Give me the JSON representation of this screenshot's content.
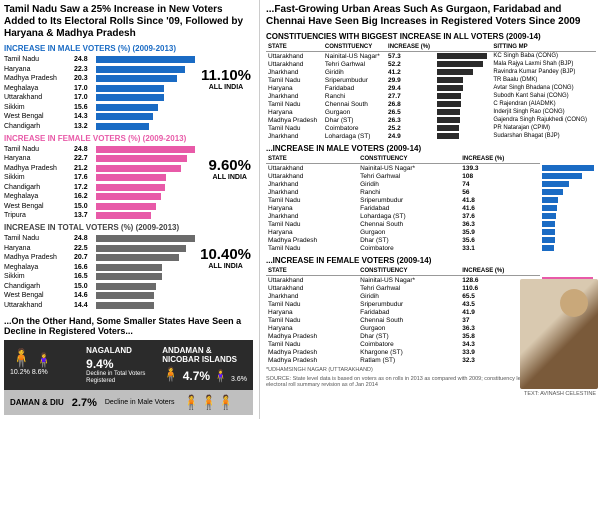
{
  "left": {
    "headline": "Tamil Nadu Saw a 25% Increase in New Voters Added to Its Electoral Rolls Since '09, Followed by Haryana & Madhya Pradesh",
    "male": {
      "title": "INCREASE IN MALE VOTERS (%) (2009-2013)",
      "overall_pct": "11.10%",
      "overall_label": "ALL INDIA",
      "bar_color": "#1a6bc4",
      "max": 25,
      "rows": [
        {
          "label": "Tamil Nadu",
          "val": 24.8
        },
        {
          "label": "Haryana",
          "val": 22.3
        },
        {
          "label": "Madhya Pradesh",
          "val": 20.3
        },
        {
          "label": "Meghalaya",
          "val": 17.0
        },
        {
          "label": "Uttarakhand",
          "val": 17.0
        },
        {
          "label": "Sikkim",
          "val": 15.6
        },
        {
          "label": "West Bengal",
          "val": 14.3
        },
        {
          "label": "Chandigarh",
          "val": 13.2
        }
      ]
    },
    "female": {
      "title": "INCREASE IN FEMALE VOTERS (%) (2009-2013)",
      "overall_pct": "9.60%",
      "overall_label": "ALL INDIA",
      "bar_color": "#e85aa8",
      "max": 25,
      "rows": [
        {
          "label": "Tamil Nadu",
          "val": 24.8
        },
        {
          "label": "Haryana",
          "val": 22.7
        },
        {
          "label": "Madhya Pradesh",
          "val": 21.2
        },
        {
          "label": "Sikkim",
          "val": 17.6
        },
        {
          "label": "Chandigarh",
          "val": 17.2
        },
        {
          "label": "Meghalaya",
          "val": 16.2
        },
        {
          "label": "West Bengal",
          "val": 15.0
        },
        {
          "label": "Tripura",
          "val": 13.7
        }
      ]
    },
    "total": {
      "title": "INCREASE IN TOTAL VOTERS (%) (2009-2013)",
      "overall_pct": "10.40%",
      "overall_label": "ALL INDIA",
      "bar_color": "#6b6b6b",
      "max": 25,
      "rows": [
        {
          "label": "Tamil Nadu",
          "val": 24.8
        },
        {
          "label": "Haryana",
          "val": 22.5
        },
        {
          "label": "Madhya Pradesh",
          "val": 20.7
        },
        {
          "label": "Meghalaya",
          "val": 16.6
        },
        {
          "label": "Sikkim",
          "val": 16.5
        },
        {
          "label": "Chandigarh",
          "val": 15.0
        },
        {
          "label": "West Bengal",
          "val": 14.6
        },
        {
          "label": "Uttarakhand",
          "val": 14.4
        }
      ]
    },
    "decline_hl": "...On the Other Hand, Some Smaller States Have Seen a Decline in Registered Voters...",
    "decline": {
      "nagaland": {
        "name": "NAGALAND",
        "pct": "9.4%",
        "desc": "Decline in Total Voters Registered",
        "m": "10.2%",
        "f": "8.6%"
      },
      "andaman": {
        "name": "ANDAMAN & NICOBAR ISLANDS",
        "pct": "4.7%",
        "f": "3.6%"
      }
    },
    "daman": {
      "name": "DAMAN & DIU",
      "pct": "2.7%",
      "desc": "Decline in Male Voters"
    }
  },
  "right": {
    "headline": "...Fast-Growing Urban Areas Such As Gurgaon, Faridabad and Chennai Have Seen Big Increases in Registered Voters Since 2009",
    "all": {
      "title": "CONSTITUENCIES WITH BIGGEST INCREASE IN ALL VOTERS (2009-14)",
      "cols": [
        "STATE",
        "CONSTITUENCY",
        "INCREASE (%)",
        "",
        "SITTING MP"
      ],
      "max": 60,
      "rows": [
        {
          "st": "Uttarakhand",
          "c": "Nainital-US Nagar*",
          "v": 57.3,
          "mp": "KC Singh Baba (CONG)"
        },
        {
          "st": "Uttarakhand",
          "c": "Tehri Garhwal",
          "v": 52.2,
          "mp": "Mala Rajya Laxmi Shah (BJP)"
        },
        {
          "st": "Jharkhand",
          "c": "Giridih",
          "v": 41.2,
          "mp": "Ravindra Kumar Pandey (BJP)"
        },
        {
          "st": "Tamil Nadu",
          "c": "Sriperumbudur",
          "v": 29.9,
          "mp": "TR Baalu (DMK)"
        },
        {
          "st": "Haryana",
          "c": "Faridabad",
          "v": 29.4,
          "mp": "Avtar Singh Bhadana (CONG)"
        },
        {
          "st": "Jharkhand",
          "c": "Ranchi",
          "v": 27.7,
          "mp": "Subodh Kant Sahai (CONG)"
        },
        {
          "st": "Tamil Nadu",
          "c": "Chennai South",
          "v": 26.8,
          "mp": "C Rajendran (AIADMK)"
        },
        {
          "st": "Haryana",
          "c": "Gurgaon",
          "v": 26.5,
          "mp": "Inderjit Singh Rao (CONG)"
        },
        {
          "st": "Madhya Pradesh",
          "c": "Dhar (ST)",
          "v": 26.3,
          "mp": "Gajendra Singh Rajukhedi (CONG)"
        },
        {
          "st": "Tamil Nadu",
          "c": "Coimbatore",
          "v": 25.2,
          "mp": "PR Natarajan (CPIM)"
        },
        {
          "st": "Jharkhand",
          "c": "Lohardaga (ST)",
          "v": 24.9,
          "mp": "Sudarshan Bhagat (BJP)"
        }
      ]
    },
    "male": {
      "title": "...INCREASE IN MALE VOTERS (2009-14)",
      "cols": [
        "STATE",
        "CONSTITUENCY",
        "INCREASE (%)"
      ],
      "max": 140,
      "rows": [
        {
          "st": "Uttarakhand",
          "c": "Nainital-US Nagar*",
          "v": 139.3
        },
        {
          "st": "Uttarakhand",
          "c": "Tehri Garhwal",
          "v": 108
        },
        {
          "st": "Jharkhand",
          "c": "Giridih",
          "v": 74.0
        },
        {
          "st": "Jharkhand",
          "c": "Ranchi",
          "v": 56.0
        },
        {
          "st": "Tamil Nadu",
          "c": "Sriperumbudur",
          "v": 41.8
        },
        {
          "st": "Haryana",
          "c": "Faridabad",
          "v": 41.6
        },
        {
          "st": "Jharkhand",
          "c": "Lohardaga (ST)",
          "v": 37.6
        },
        {
          "st": "Tamil Nadu",
          "c": "Chennai South",
          "v": 36.3
        },
        {
          "st": "Haryana",
          "c": "Gurgaon",
          "v": 35.9
        },
        {
          "st": "Madhya Pradesh",
          "c": "Dhar (ST)",
          "v": 35.6
        },
        {
          "st": "Tamil Nadu",
          "c": "Coimbatore",
          "v": 33.1
        }
      ]
    },
    "female": {
      "title": "...INCREASE IN FEMALE VOTERS (2009-14)",
      "cols": [
        "STATE",
        "CONSTITUENCY",
        "INCREASE (%)"
      ],
      "max": 130,
      "rows": [
        {
          "st": "Uttarakhand",
          "c": "Nainital-US Nagar*",
          "v": 128.6
        },
        {
          "st": "Uttarakhand",
          "c": "Tehri Garhwal",
          "v": 110.6
        },
        {
          "st": "Jharkhand",
          "c": "Giridih",
          "v": 65.5
        },
        {
          "st": "Tamil Nadu",
          "c": "Sriperumbudur",
          "v": 43.5
        },
        {
          "st": "Haryana",
          "c": "Faridabad",
          "v": 41.9
        },
        {
          "st": "Tamil Nadu",
          "c": "Chennai South",
          "v": 37.0
        },
        {
          "st": "Haryana",
          "c": "Gurgaon",
          "v": 36.3
        },
        {
          "st": "Madhya Pradesh",
          "c": "Dhar (ST)",
          "v": 35.8
        },
        {
          "st": "Tamil Nadu",
          "c": "Coimbatore",
          "v": 34.3
        },
        {
          "st": "Madhya Pradesh",
          "c": "Khargone (ST)",
          "v": 33.9
        },
        {
          "st": "Madhya Pradesh",
          "c": "Ratlam (ST)",
          "v": 32.3
        }
      ]
    },
    "footnote": "*UDHAMSINGH NAGAR (UTTARAKHAND)",
    "source": "SOURCE: State level data is based on voters as on rolls in 2013 as compared with 2009; constituency level data is based on draft electoral roll summary revision as of Jan 2014",
    "credit": "TEXT: AVINASH CELESTINE"
  }
}
